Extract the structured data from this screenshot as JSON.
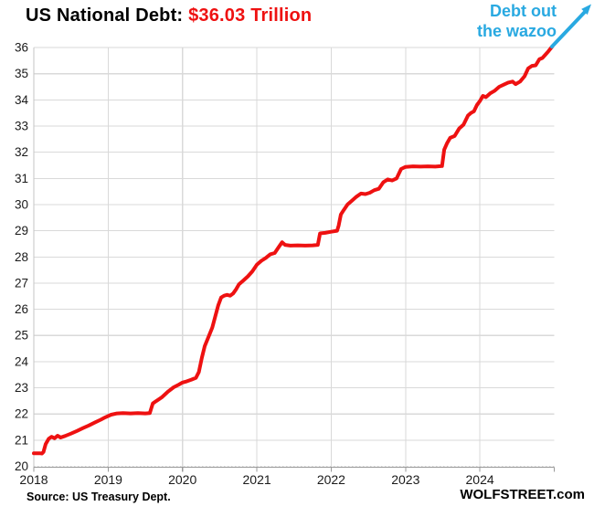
{
  "title": {
    "prefix": "US National Debt: ",
    "value": "$36.03 Trillion"
  },
  "annotation": {
    "line1": "Debt out",
    "line2": "the wazoo"
  },
  "footer": {
    "source": "Source: US Treasury Dept.",
    "brand": "WOLFSTREET.com"
  },
  "colors": {
    "line": "#ee1111",
    "accent_cyan": "#29a9e1",
    "grid": "#d9d9d9",
    "axis": "#999999",
    "tick_text": "#1a1a1a"
  },
  "chart_data": {
    "type": "line",
    "title": "US National Debt: $36.03 Trillion",
    "xlabel": "",
    "ylabel": "",
    "xlim": [
      2018,
      2025
    ],
    "ylim": [
      20,
      36
    ],
    "x_ticks": [
      2018,
      2019,
      2020,
      2021,
      2022,
      2023,
      2024
    ],
    "y_ticks": [
      20,
      21,
      22,
      23,
      24,
      25,
      26,
      27,
      28,
      29,
      30,
      31,
      32,
      33,
      34,
      35,
      36
    ],
    "grid": true,
    "legend": "none",
    "series": [
      {
        "name": "US National Debt ($ trillions)",
        "points": [
          [
            2018.0,
            20.5
          ],
          [
            2018.08,
            20.5
          ],
          [
            2018.11,
            20.49
          ],
          [
            2018.13,
            20.55
          ],
          [
            2018.16,
            20.85
          ],
          [
            2018.2,
            21.05
          ],
          [
            2018.24,
            21.13
          ],
          [
            2018.28,
            21.07
          ],
          [
            2018.32,
            21.17
          ],
          [
            2018.36,
            21.1
          ],
          [
            2018.42,
            21.16
          ],
          [
            2018.5,
            21.25
          ],
          [
            2018.58,
            21.35
          ],
          [
            2018.66,
            21.46
          ],
          [
            2018.74,
            21.56
          ],
          [
            2018.82,
            21.67
          ],
          [
            2018.9,
            21.78
          ],
          [
            2018.96,
            21.87
          ],
          [
            2019.04,
            21.97
          ],
          [
            2019.12,
            22.02
          ],
          [
            2019.2,
            22.03
          ],
          [
            2019.3,
            22.02
          ],
          [
            2019.4,
            22.03
          ],
          [
            2019.5,
            22.02
          ],
          [
            2019.56,
            22.03
          ],
          [
            2019.6,
            22.4
          ],
          [
            2019.65,
            22.5
          ],
          [
            2019.72,
            22.63
          ],
          [
            2019.8,
            22.84
          ],
          [
            2019.88,
            23.02
          ],
          [
            2019.95,
            23.12
          ],
          [
            2020.0,
            23.2
          ],
          [
            2020.06,
            23.25
          ],
          [
            2020.12,
            23.31
          ],
          [
            2020.18,
            23.38
          ],
          [
            2020.22,
            23.6
          ],
          [
            2020.26,
            24.15
          ],
          [
            2020.3,
            24.6
          ],
          [
            2020.35,
            24.95
          ],
          [
            2020.4,
            25.3
          ],
          [
            2020.44,
            25.72
          ],
          [
            2020.48,
            26.15
          ],
          [
            2020.52,
            26.45
          ],
          [
            2020.56,
            26.52
          ],
          [
            2020.6,
            26.55
          ],
          [
            2020.64,
            26.52
          ],
          [
            2020.68,
            26.6
          ],
          [
            2020.72,
            26.76
          ],
          [
            2020.76,
            26.95
          ],
          [
            2020.82,
            27.1
          ],
          [
            2020.88,
            27.26
          ],
          [
            2020.94,
            27.45
          ],
          [
            2021.0,
            27.7
          ],
          [
            2021.06,
            27.85
          ],
          [
            2021.12,
            27.96
          ],
          [
            2021.18,
            28.1
          ],
          [
            2021.24,
            28.15
          ],
          [
            2021.3,
            28.4
          ],
          [
            2021.34,
            28.56
          ],
          [
            2021.38,
            28.46
          ],
          [
            2021.45,
            28.43
          ],
          [
            2021.55,
            28.44
          ],
          [
            2021.65,
            28.43
          ],
          [
            2021.75,
            28.44
          ],
          [
            2021.82,
            28.46
          ],
          [
            2021.85,
            28.9
          ],
          [
            2021.92,
            28.92
          ],
          [
            2022.0,
            28.96
          ],
          [
            2022.08,
            29.0
          ],
          [
            2022.1,
            29.2
          ],
          [
            2022.13,
            29.62
          ],
          [
            2022.17,
            29.8
          ],
          [
            2022.22,
            30.0
          ],
          [
            2022.28,
            30.15
          ],
          [
            2022.34,
            30.3
          ],
          [
            2022.4,
            30.42
          ],
          [
            2022.46,
            30.4
          ],
          [
            2022.52,
            30.45
          ],
          [
            2022.58,
            30.55
          ],
          [
            2022.64,
            30.6
          ],
          [
            2022.7,
            30.85
          ],
          [
            2022.76,
            30.96
          ],
          [
            2022.82,
            30.92
          ],
          [
            2022.88,
            31.0
          ],
          [
            2022.94,
            31.36
          ],
          [
            2023.0,
            31.44
          ],
          [
            2023.1,
            31.46
          ],
          [
            2023.2,
            31.45
          ],
          [
            2023.3,
            31.46
          ],
          [
            2023.4,
            31.45
          ],
          [
            2023.49,
            31.47
          ],
          [
            2023.52,
            32.1
          ],
          [
            2023.56,
            32.35
          ],
          [
            2023.6,
            32.55
          ],
          [
            2023.66,
            32.62
          ],
          [
            2023.72,
            32.9
          ],
          [
            2023.78,
            33.05
          ],
          [
            2023.84,
            33.4
          ],
          [
            2023.88,
            33.5
          ],
          [
            2023.92,
            33.56
          ],
          [
            2023.96,
            33.8
          ],
          [
            2024.0,
            33.95
          ],
          [
            2024.04,
            34.15
          ],
          [
            2024.08,
            34.1
          ],
          [
            2024.14,
            34.25
          ],
          [
            2024.2,
            34.35
          ],
          [
            2024.26,
            34.5
          ],
          [
            2024.32,
            34.58
          ],
          [
            2024.38,
            34.66
          ],
          [
            2024.44,
            34.7
          ],
          [
            2024.48,
            34.6
          ],
          [
            2024.54,
            34.7
          ],
          [
            2024.6,
            34.9
          ],
          [
            2024.65,
            35.2
          ],
          [
            2024.7,
            35.3
          ],
          [
            2024.75,
            35.32
          ],
          [
            2024.8,
            35.55
          ],
          [
            2024.84,
            35.6
          ],
          [
            2024.88,
            35.72
          ],
          [
            2024.92,
            35.85
          ],
          [
            2024.97,
            36.03
          ]
        ]
      }
    ],
    "last_value_label": "$36.03 Trillion"
  }
}
